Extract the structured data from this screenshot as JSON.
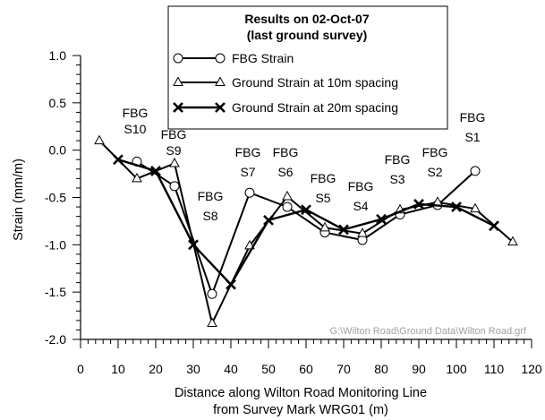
{
  "chart_data": {
    "type": "line",
    "legend_title": [
      "Results on 02-Oct-07",
      "(last ground survey)"
    ],
    "xlabel": [
      "Distance along Wilton Road Monitoring Line",
      "from Survey Mark WRG01 (m)"
    ],
    "ylabel": "Strain (mm/m)",
    "xlim": [
      0,
      120
    ],
    "ylim": [
      -2.0,
      1.0
    ],
    "x_ticks": [
      0,
      10,
      20,
      30,
      40,
      50,
      60,
      70,
      80,
      90,
      100,
      110,
      120
    ],
    "y_ticks": [
      1.0,
      0.5,
      0.0,
      -0.5,
      -1.0,
      -1.5,
      -2.0
    ],
    "y_tick_labels": [
      "1.0",
      "0.5",
      "0.0",
      "-0.5",
      "-1.0",
      "-1.5",
      "-2.0"
    ],
    "legend_position": "top-right",
    "grid": false,
    "series": [
      {
        "name": "FBG Strain",
        "marker": "circle",
        "x": [
          15,
          25,
          35,
          45,
          55,
          65,
          75,
          85,
          95,
          105
        ],
        "y": [
          -0.12,
          -0.38,
          -1.52,
          -0.45,
          -0.6,
          -0.87,
          -0.95,
          -0.68,
          -0.58,
          -0.22
        ]
      },
      {
        "name": "Ground Strain at 10m spacing",
        "marker": "triangle",
        "x": [
          5,
          15,
          25,
          35,
          45,
          55,
          65,
          75,
          85,
          95,
          105,
          115
        ],
        "y": [
          0.1,
          -0.3,
          -0.14,
          -1.83,
          -1.01,
          -0.49,
          -0.82,
          -0.88,
          -0.63,
          -0.55,
          -0.62,
          -0.97
        ]
      },
      {
        "name": "Ground Strain at 20m spacing",
        "marker": "x",
        "x": [
          10,
          20,
          30,
          40,
          50,
          60,
          70,
          80,
          90,
          100,
          110
        ],
        "y": [
          -0.1,
          -0.22,
          -1.0,
          -1.42,
          -0.74,
          -0.63,
          -0.84,
          -0.73,
          -0.57,
          -0.6,
          -0.8
        ]
      }
    ],
    "station_labels": [
      {
        "line1": "FBG",
        "line2": "S10",
        "x": 15
      },
      {
        "line1": "FBG",
        "line2": "S9",
        "x": 25
      },
      {
        "line1": "FBG",
        "line2": "S8",
        "x": 35
      },
      {
        "line1": "FBG",
        "line2": "S7",
        "x": 45
      },
      {
        "line1": "FBG",
        "line2": "S6",
        "x": 55
      },
      {
        "line1": "FBG",
        "line2": "S5",
        "x": 65
      },
      {
        "line1": "FBG",
        "line2": "S4",
        "x": 75
      },
      {
        "line1": "FBG",
        "line2": "S3",
        "x": 85
      },
      {
        "line1": "FBG",
        "line2": "S2",
        "x": 95
      },
      {
        "line1": "FBG",
        "line2": "S1",
        "x": 105
      }
    ],
    "annotation": "G:\\Wilton Road\\Ground Data\\Wilton Road.grf"
  }
}
